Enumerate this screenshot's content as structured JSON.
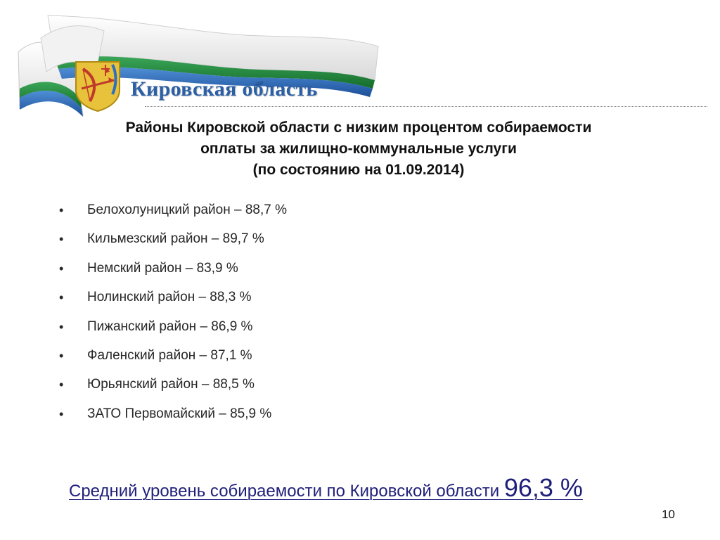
{
  "header": {
    "region_name": "Кировская область"
  },
  "title": {
    "line1": "Районы Кировской области с низким процентом собираемости",
    "line2": "оплаты за жилищно-коммунальные услуги",
    "line3": "(по состоянию на 01.09.2014)"
  },
  "districts": [
    {
      "text": "Белохолуницкий район – 88,7 %"
    },
    {
      "text": "Кильмезский район – 89,7 %"
    },
    {
      "text": "Немский район – 83,9 %"
    },
    {
      "text": "Нолинский район – 88,3 %"
    },
    {
      "text": "Пижанский район – 86,9 %"
    },
    {
      "text": "Фаленский район – 87,1 %"
    },
    {
      "text": "Юрьянский район – 88,5 %"
    },
    {
      "text": "ЗАТО Первомайский – 85,9 %"
    }
  ],
  "bullet": "•",
  "summary": {
    "label": "Средний уровень собираемости по Кировской области ",
    "value": "96,3 %"
  },
  "page_number": "10",
  "colors": {
    "title_blue": "#2b5fa6",
    "flag_white": "#ffffff",
    "flag_green": "#1f8a3a",
    "flag_blue": "#2f6fbf",
    "summary_text": "#1f1f7a"
  }
}
